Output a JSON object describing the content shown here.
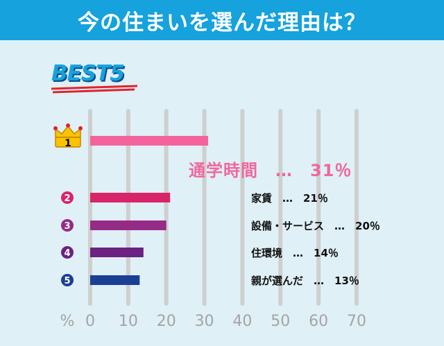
{
  "header": {
    "title": "今の住まいを選んだ理由は？"
  },
  "badge": {
    "text": "BEST5"
  },
  "chart_data": {
    "type": "bar",
    "orientation": "horizontal",
    "categories": [
      "通学時間",
      "家賃",
      "設備・サービス",
      "住環境",
      "親が選んだ"
    ],
    "values": [
      31,
      21,
      20,
      14,
      13
    ],
    "ranks": [
      "1",
      "2",
      "3",
      "4",
      "5"
    ],
    "bar_colors": [
      "#f4649c",
      "#d8256a",
      "#962b87",
      "#6b2281",
      "#1b3f93"
    ],
    "rank_colors": [
      "#f5a300",
      "#d8256a",
      "#962b87",
      "#6b2281",
      "#1b3f93"
    ],
    "annotations": [
      "通学時間　…　31％",
      "家賃　…　21％",
      "設備・サービス　…　20％",
      "住環境　…　14％",
      "親が選んだ　…　13％"
    ],
    "xlabel": "%",
    "xlim": [
      0,
      70
    ],
    "xticks": [
      "0",
      "10",
      "20",
      "30",
      "40",
      "50",
      "60",
      "70"
    ],
    "grid": true,
    "title": "今の住まいを選んだ理由は？"
  },
  "colors": {
    "header_bg": "#16a2dc",
    "plot_bg": "#dff0f6",
    "grid": "#cfcfcf",
    "tick_text": "#a4a4a4",
    "top_annotation": "#f0679c"
  }
}
